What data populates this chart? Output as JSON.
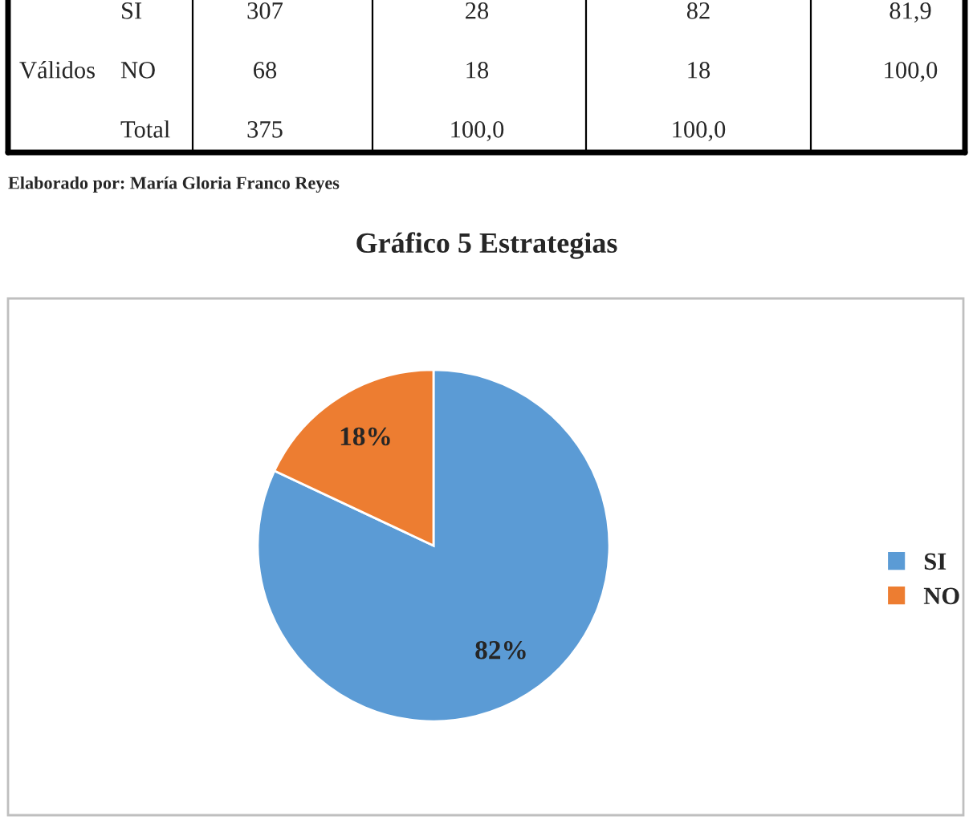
{
  "chart_data": {
    "type": "pie",
    "title": "Gráfico 5 Estrategias",
    "categories": [
      "SI",
      "NO"
    ],
    "values": [
      82,
      18
    ],
    "value_labels": [
      "82%",
      "18%"
    ],
    "colors": [
      "#5b9bd5",
      "#ed7d31"
    ],
    "legend": "right",
    "annotations": [
      "Válidos",
      "SI",
      "307",
      "28",
      "82",
      "81,9",
      "NO",
      "68",
      "18",
      "18",
      "100,0",
      "Total",
      "375",
      "100,0",
      "100,0",
      "Elaborado por: María Gloria Franco Reyes"
    ]
  }
}
